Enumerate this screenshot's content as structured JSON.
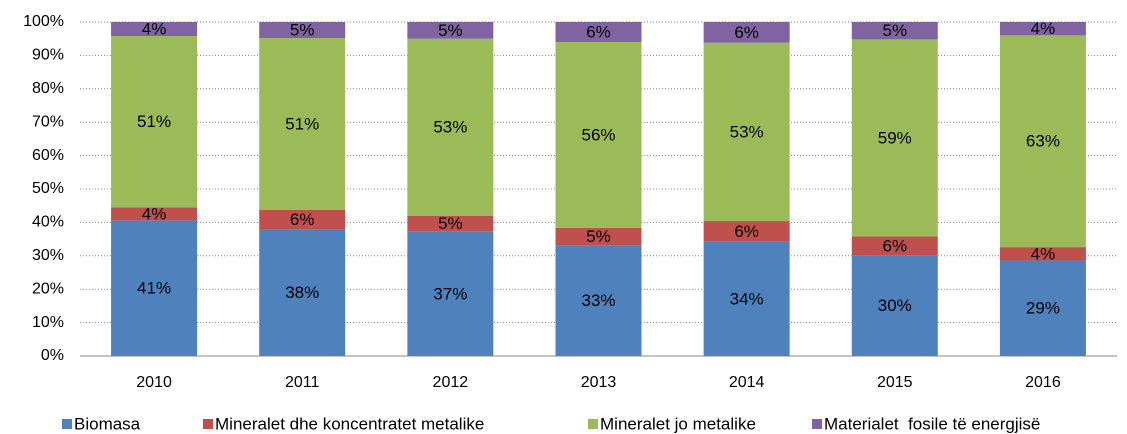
{
  "chart_data": {
    "type": "stacked_bar",
    "categories": [
      "2010",
      "2011",
      "2012",
      "2013",
      "2014",
      "2015",
      "2016"
    ],
    "series": [
      {
        "name": "Biomasa",
        "color": "#4f81bd",
        "values": [
          40.6,
          38.0,
          37.2,
          33.2,
          34.2,
          30.2,
          28.6
        ],
        "value_labels": [
          "41%",
          "38%",
          "37%",
          "33%",
          "34%",
          "30%",
          "29%"
        ]
      },
      {
        "name": "Mineralet dhe koncentratet metalike",
        "color": "#c0504d",
        "values": [
          3.9,
          5.8,
          4.8,
          5.2,
          6.2,
          5.6,
          4.0
        ],
        "value_labels": [
          "4%",
          "6%",
          "5%",
          "5%",
          "6%",
          "6%",
          "4%"
        ]
      },
      {
        "name": "Mineralet jo metalike",
        "color": "#9bbb59",
        "values": [
          51.3,
          51.4,
          53.0,
          55.6,
          53.4,
          59.0,
          63.4
        ],
        "value_labels": [
          "51%",
          "51%",
          "53%",
          "56%",
          "53%",
          "59%",
          "63%"
        ]
      },
      {
        "name": "Materialet  fosile të energjisë",
        "color": "#8064a2",
        "values": [
          4.2,
          4.8,
          5.0,
          6.0,
          6.2,
          5.2,
          4.0
        ],
        "value_labels": [
          "4%",
          "5%",
          "5%",
          "6%",
          "6%",
          "5%",
          "4%"
        ]
      }
    ],
    "ylim": [
      0,
      100
    ],
    "yticks": [
      {
        "value": 0,
        "label": "0%"
      },
      {
        "value": 10,
        "label": "10%"
      },
      {
        "value": 20,
        "label": "20%"
      },
      {
        "value": 30,
        "label": "30%"
      },
      {
        "value": 40,
        "label": "40%"
      },
      {
        "value": 50,
        "label": "50%"
      },
      {
        "value": 60,
        "label": "60%"
      },
      {
        "value": 70,
        "label": "70%"
      },
      {
        "value": 80,
        "label": "80%"
      },
      {
        "value": 90,
        "label": "90%"
      },
      {
        "value": 100,
        "label": "100%"
      }
    ],
    "grid": true,
    "legend": "bottom"
  }
}
